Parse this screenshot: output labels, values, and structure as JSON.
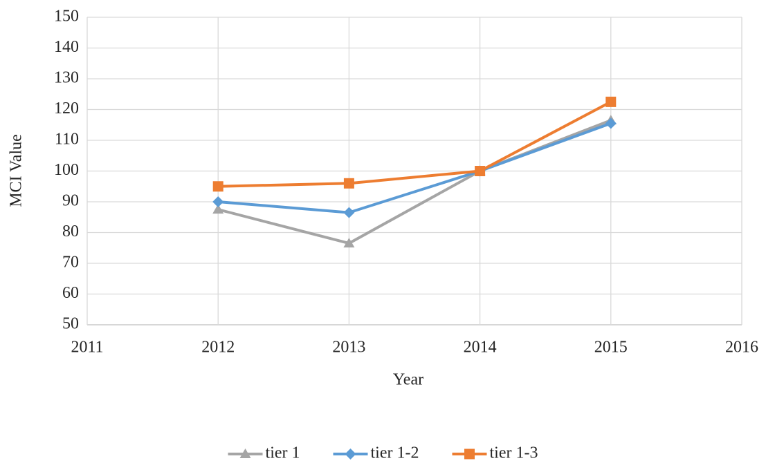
{
  "chart_data": {
    "type": "line",
    "x_label": "Year",
    "y_label": "MCI Value",
    "x": [
      2012,
      2013,
      2014,
      2015
    ],
    "xlim": [
      2011,
      2016
    ],
    "xticks": [
      2011,
      2012,
      2013,
      2014,
      2015,
      2016
    ],
    "ylim": [
      50,
      150
    ],
    "yticks": [
      50,
      60,
      70,
      80,
      90,
      100,
      110,
      120,
      130,
      140,
      150
    ],
    "grid": true,
    "legend": "bottom",
    "series": [
      {
        "name": "tier 1",
        "color": "#a5a5a5",
        "marker": "triangle",
        "values": [
          87.5,
          76.5,
          100,
          116.5
        ]
      },
      {
        "name": "tier 1-2",
        "color": "#5b9bd5",
        "marker": "diamond",
        "values": [
          90,
          86.5,
          100,
          115.5
        ]
      },
      {
        "name": "tier 1-3",
        "color": "#ed7d31",
        "marker": "square",
        "values": [
          95,
          96,
          100,
          122.5
        ]
      }
    ]
  }
}
